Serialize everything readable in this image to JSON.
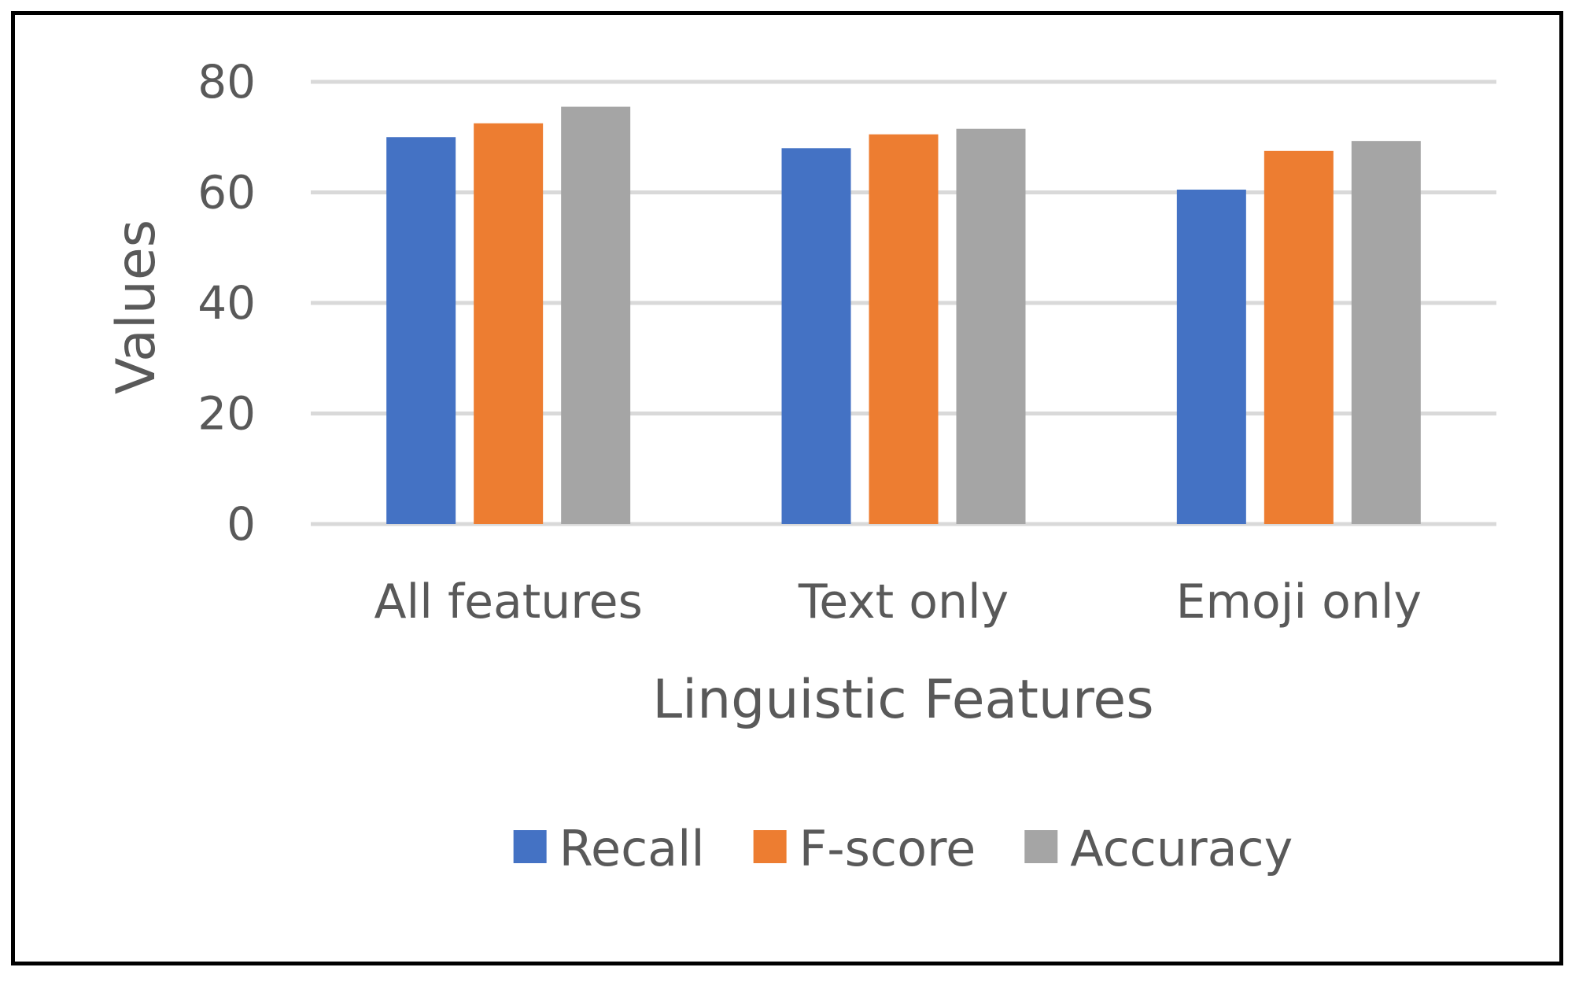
{
  "chart_data": {
    "type": "bar",
    "title": "",
    "xlabel": "Linguistic Features",
    "ylabel": "Values",
    "categories": [
      "All features",
      "Text only",
      "Emoji only"
    ],
    "series": [
      {
        "name": "Recall",
        "color": "#4472C4",
        "values": [
          70,
          68,
          60.5
        ]
      },
      {
        "name": "F-score",
        "color": "#ED7D31",
        "values": [
          72.5,
          70.5,
          67.5
        ]
      },
      {
        "name": "Accuracy",
        "color": "#A5A5A5",
        "values": [
          75.5,
          71.5,
          69.3
        ]
      }
    ],
    "ylim": [
      0,
      80
    ],
    "yticks": [
      0,
      20,
      40,
      60,
      80
    ],
    "grid": true,
    "gridColor": "#D9D9D9",
    "legend": "bottom"
  }
}
